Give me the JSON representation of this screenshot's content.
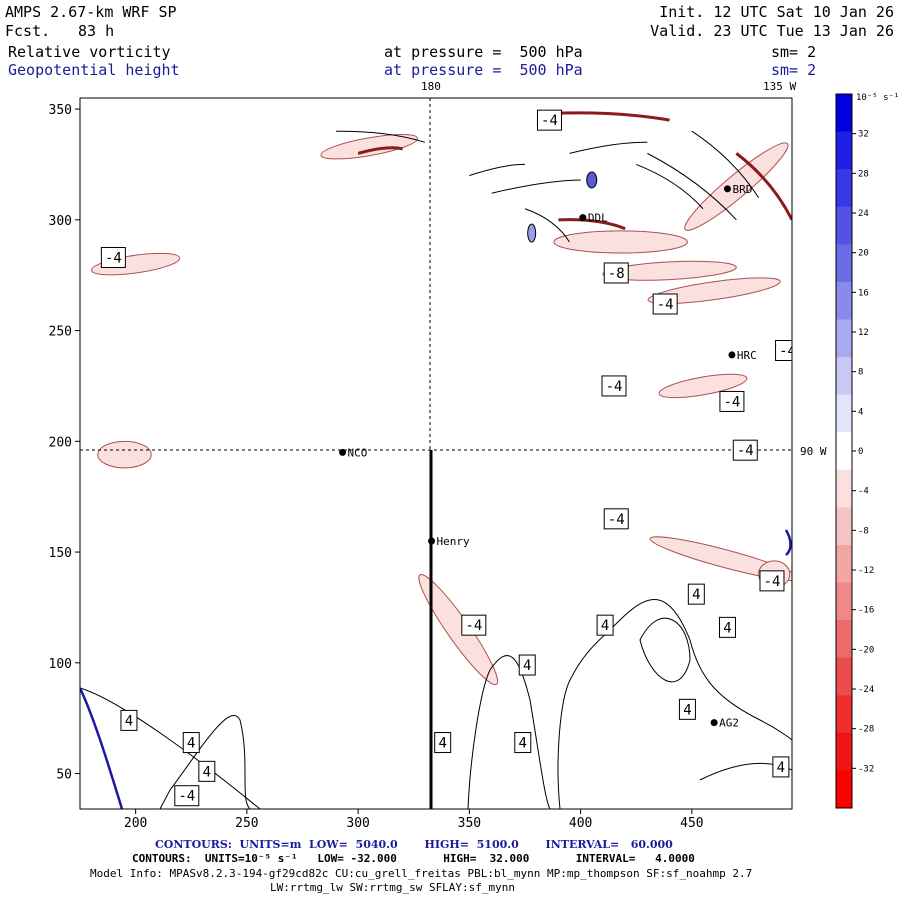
{
  "header": {
    "model": "AMPS 2.67-km WRF SP",
    "fcst_label": "Fcst.",
    "fcst_value": "83 h",
    "init": "Init. 12 UTC Sat 10 Jan 26",
    "valid": "Valid. 23 UTC Tue 13 Jan 26",
    "field1": "Relative vorticity",
    "field1_level": "at pressure =  500 hPa",
    "field1_sm": "sm= 2",
    "field2": "Geopotential height",
    "field2_level": "at pressure =  500 hPa",
    "field2_sm": "sm= 2"
  },
  "map": {
    "meridian_180": "180",
    "meridian_135w": "135 W",
    "meridian_90w": "90 W",
    "stations": [
      {
        "name": "NCO",
        "x": 293,
        "y": 195
      },
      {
        "name": "Henry",
        "x": 333,
        "y": 155
      },
      {
        "name": "HRC",
        "x": 468,
        "y": 239
      },
      {
        "name": "AG2",
        "x": 460,
        "y": 73
      },
      {
        "name": "DDL",
        "x": 401,
        "y": 301
      },
      {
        "name": "BRD",
        "x": 466,
        "y": 314
      }
    ],
    "contour_labels": [
      {
        "t": "-4",
        "x": 190,
        "y": 283
      },
      {
        "t": "-4",
        "x": 386,
        "y": 345
      },
      {
        "t": "-8",
        "x": 416,
        "y": 276
      },
      {
        "t": "-4",
        "x": 438,
        "y": 262
      },
      {
        "t": "-4",
        "x": 493,
        "y": 241
      },
      {
        "t": "-4",
        "x": 415,
        "y": 225
      },
      {
        "t": "-4",
        "x": 468,
        "y": 218
      },
      {
        "t": "-4",
        "x": 474,
        "y": 196
      },
      {
        "t": "-4",
        "x": 416,
        "y": 165
      },
      {
        "t": "-4",
        "x": 486,
        "y": 137
      },
      {
        "t": "-4",
        "x": 352,
        "y": 117
      },
      {
        "t": "-4",
        "x": 223,
        "y": 40
      },
      {
        "t": "4",
        "x": 452,
        "y": 131
      },
      {
        "t": "4",
        "x": 411,
        "y": 117
      },
      {
        "t": "4",
        "x": 466,
        "y": 116
      },
      {
        "t": "4",
        "x": 376,
        "y": 99
      },
      {
        "t": "4",
        "x": 448,
        "y": 79
      },
      {
        "t": "4",
        "x": 197,
        "y": 74
      },
      {
        "t": "4",
        "x": 225,
        "y": 64
      },
      {
        "t": "4",
        "x": 338,
        "y": 64
      },
      {
        "t": "4",
        "x": 374,
        "y": 64
      },
      {
        "t": "4",
        "x": 232,
        "y": 51
      },
      {
        "t": "4",
        "x": 490,
        "y": 53
      }
    ]
  },
  "chart_data": {
    "type": "heatmap",
    "title": "Relative vorticity / Geopotential height at 500 hPa",
    "xlim": [
      175,
      495
    ],
    "ylim": [
      34,
      355
    ],
    "xticks": [
      200,
      250,
      300,
      350,
      400,
      450
    ],
    "yticks": [
      50,
      100,
      150,
      200,
      250,
      300,
      350
    ],
    "colorbar": {
      "unit": "10⁻⁵ s⁻¹",
      "min": -36,
      "max": 36,
      "ticks": [
        32,
        28,
        24,
        20,
        16,
        12,
        8,
        4,
        0,
        -4,
        -8,
        -12,
        -16,
        -20,
        -24,
        -28,
        -32
      ],
      "colors": [
        "#0000e0",
        "#1f1fe8",
        "#3838e6",
        "#5252e6",
        "#6b6be6",
        "#8a8aec",
        "#aaaaf2",
        "#c8c8f6",
        "#e4e4fb",
        "#ffffff",
        "#fbe0e0",
        "#f6c4c4",
        "#f2a6a6",
        "#ef8888",
        "#ed6a6a",
        "#ec4c4c",
        "#ee2e2e",
        "#f01414",
        "#ff0000"
      ]
    },
    "vorticity_negative_patches": [
      {
        "cx": 200,
        "cy": 280,
        "rx": 20,
        "ry": 4,
        "rot": -8
      },
      {
        "cx": 305,
        "cy": 333,
        "rx": 22,
        "ry": 4,
        "rot": -10
      },
      {
        "cx": 440,
        "cy": 277,
        "rx": 30,
        "ry": 4,
        "rot": -3
      },
      {
        "cx": 460,
        "cy": 268,
        "rx": 30,
        "ry": 4,
        "rot": -8
      },
      {
        "cx": 455,
        "cy": 225,
        "rx": 20,
        "ry": 4,
        "rot": -10
      },
      {
        "cx": 345,
        "cy": 115,
        "rx": 30,
        "ry": 5,
        "rot": 55
      },
      {
        "cx": 195,
        "cy": 194,
        "rx": 12,
        "ry": 6,
        "rot": 0
      },
      {
        "cx": 465,
        "cy": 147,
        "rx": 35,
        "ry": 4,
        "rot": 15
      },
      {
        "cx": 487,
        "cy": 140,
        "rx": 7,
        "ry": 6,
        "rot": 0
      },
      {
        "cx": 418,
        "cy": 290,
        "rx": 30,
        "ry": 5,
        "rot": 0
      },
      {
        "cx": 470,
        "cy": 315,
        "rx": 30,
        "ry": 5,
        "rot": -40
      }
    ],
    "heights_contour": {
      "label": "5040/5100 m",
      "color": "#1a1a9c"
    }
  },
  "footer": {
    "contours1": "CONTOURS:  UNITS=m  LOW=  5040.0       HIGH=  5100.0       INTERVAL=   60.000",
    "contours2": "CONTOURS:  UNITS=10⁻⁵ s⁻¹   LOW= -32.000       HIGH=  32.000       INTERVAL=   4.0000",
    "model_info": "Model Info: MPASv8.2.3-194-gf29cd82c CU:cu_grell_freitas PBL:bl_mynn MP:mp_thompson SF:sf_noahmp 2.7",
    "model_info2": "LW:rrtmg_lw SW:rrtmg_sw SFLAY:sf_mynn"
  }
}
